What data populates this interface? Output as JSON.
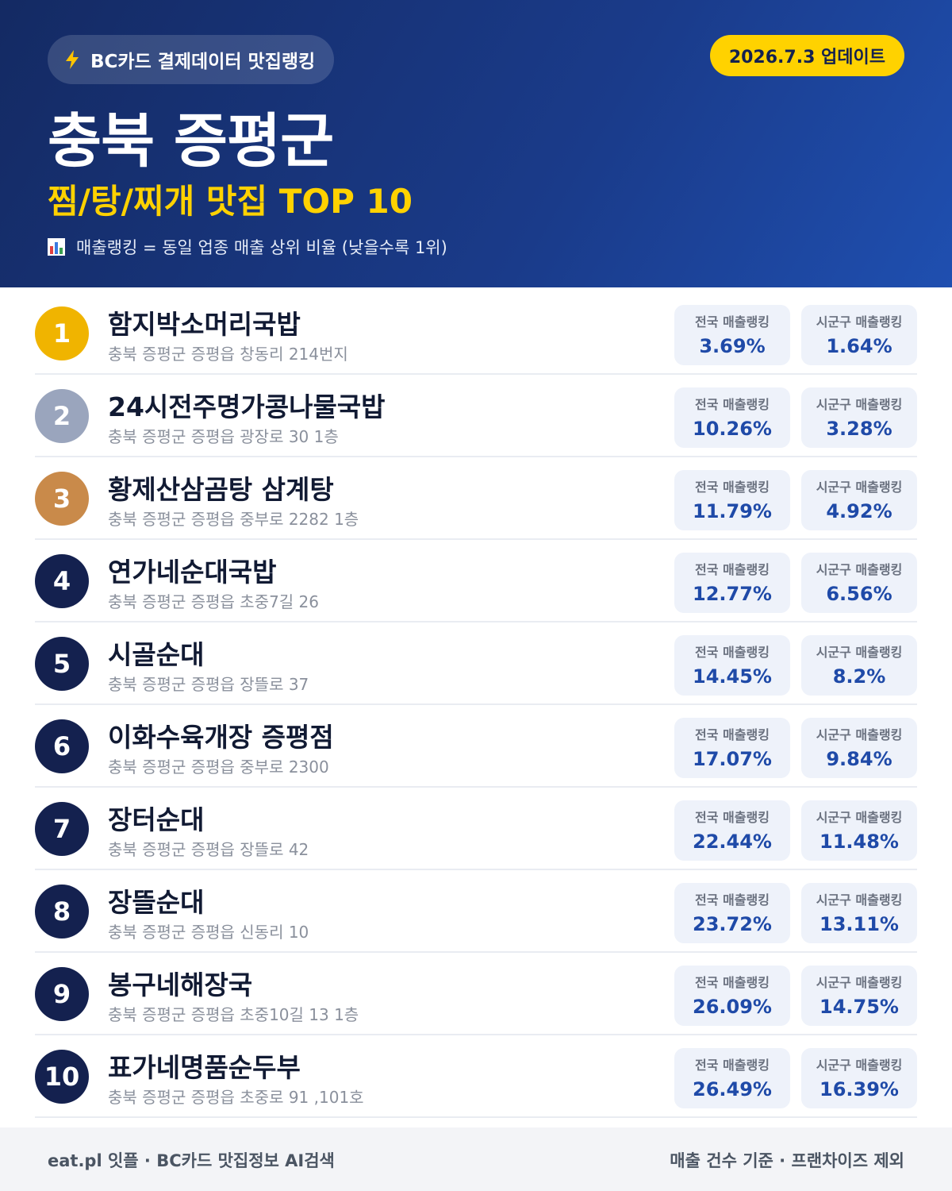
{
  "header": {
    "badge": "BC카드 결제데이터 맛집랭킹",
    "date": "2026.7.3 업데이트",
    "title": "충북 증평군",
    "subtitle": "찜/탕/찌개 맛집 TOP 10",
    "note": "매출랭킹 = 동일 업종 매출 상위 비율 (낮을수록 1위)"
  },
  "columns": [
    "전국 매출랭킹",
    "시군구 매출랭킹"
  ],
  "rows": [
    {
      "rank": 1,
      "name": "함지박소머리국밥",
      "address": "충북 증평군 증평읍 창동리 214번지",
      "national": "3.69%",
      "district": "1.64%"
    },
    {
      "rank": 2,
      "name": "24시전주명가콩나물국밥",
      "address": "충북 증평군 증평읍 광장로 30 1층",
      "national": "10.26%",
      "district": "3.28%"
    },
    {
      "rank": 3,
      "name": "황제산삼곰탕 삼계탕",
      "address": "충북 증평군 증평읍 중부로 2282 1층",
      "national": "11.79%",
      "district": "4.92%"
    },
    {
      "rank": 4,
      "name": "연가네순대국밥",
      "address": "충북 증평군 증평읍 초중7길 26",
      "national": "12.77%",
      "district": "6.56%"
    },
    {
      "rank": 5,
      "name": "시골순대",
      "address": "충북 증평군 증평읍 장뜰로 37",
      "national": "14.45%",
      "district": "8.2%"
    },
    {
      "rank": 6,
      "name": "이화수육개장 증평점",
      "address": "충북 증평군 증평읍 중부로 2300",
      "national": "17.07%",
      "district": "9.84%"
    },
    {
      "rank": 7,
      "name": "장터순대",
      "address": "충북 증평군 증평읍 장뜰로 42",
      "national": "22.44%",
      "district": "11.48%"
    },
    {
      "rank": 8,
      "name": "장뜰순대",
      "address": "충북 증평군 증평읍 신동리 10",
      "national": "23.72%",
      "district": "13.11%"
    },
    {
      "rank": 9,
      "name": "봉구네해장국",
      "address": "충북 증평군 증평읍 초중10길 13 1층",
      "national": "26.09%",
      "district": "14.75%"
    },
    {
      "rank": 10,
      "name": "표가네명품순두부",
      "address": "충북 증평군 증평읍 초중로 91 ,101호",
      "national": "26.49%",
      "district": "16.39%"
    }
  ],
  "footer": {
    "left": "eat.pl 잇플 · BC카드 맛집정보 AI검색",
    "right": "매출 건수 기준 · 프랜차이즈 제외"
  }
}
